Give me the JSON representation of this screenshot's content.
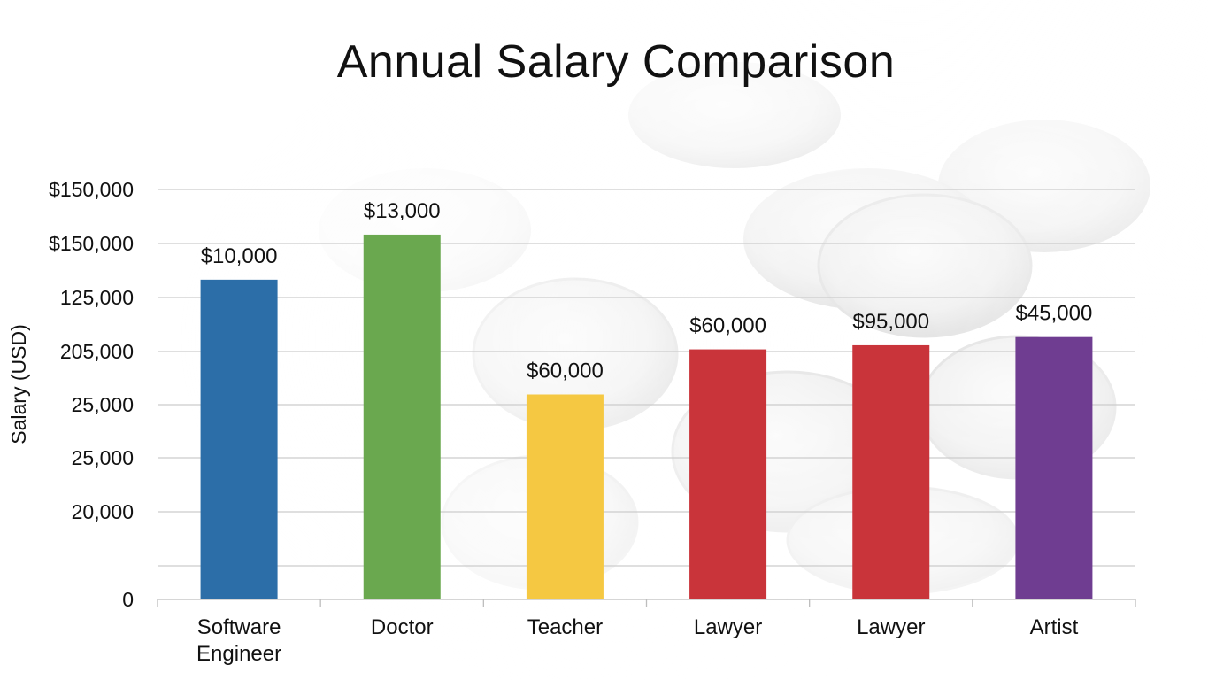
{
  "chart_data": {
    "type": "bar",
    "title": "Annual Salary Comparison",
    "ylabel": "Salary (USD)",
    "xlabel": "",
    "y_tick_labels": [
      "$150,000",
      "$150,000",
      "125,000",
      "205,000",
      "25,000",
      "25,000",
      "20,000",
      "",
      "0"
    ],
    "ylim": [
      0,
      160000
    ],
    "grid": true,
    "categories": [
      [
        "Software",
        "Engineer"
      ],
      [
        "Doctor"
      ],
      [
        "Teacher"
      ],
      [
        "Lawyer"
      ],
      [
        "Lawyer"
      ],
      [
        "Artist"
      ]
    ],
    "bar_fraction": [
      0.78,
      0.89,
      0.5,
      0.61,
      0.62,
      0.64
    ],
    "data_labels": [
      "$10,000",
      "$13,000",
      "$60,000",
      "$60,000",
      "$95,000",
      "$45,000"
    ],
    "colors": [
      "#2c6ea8",
      "#6aa84f",
      "#f5c842",
      "#c9343a",
      "#c9343a",
      "#6f3d91"
    ]
  }
}
